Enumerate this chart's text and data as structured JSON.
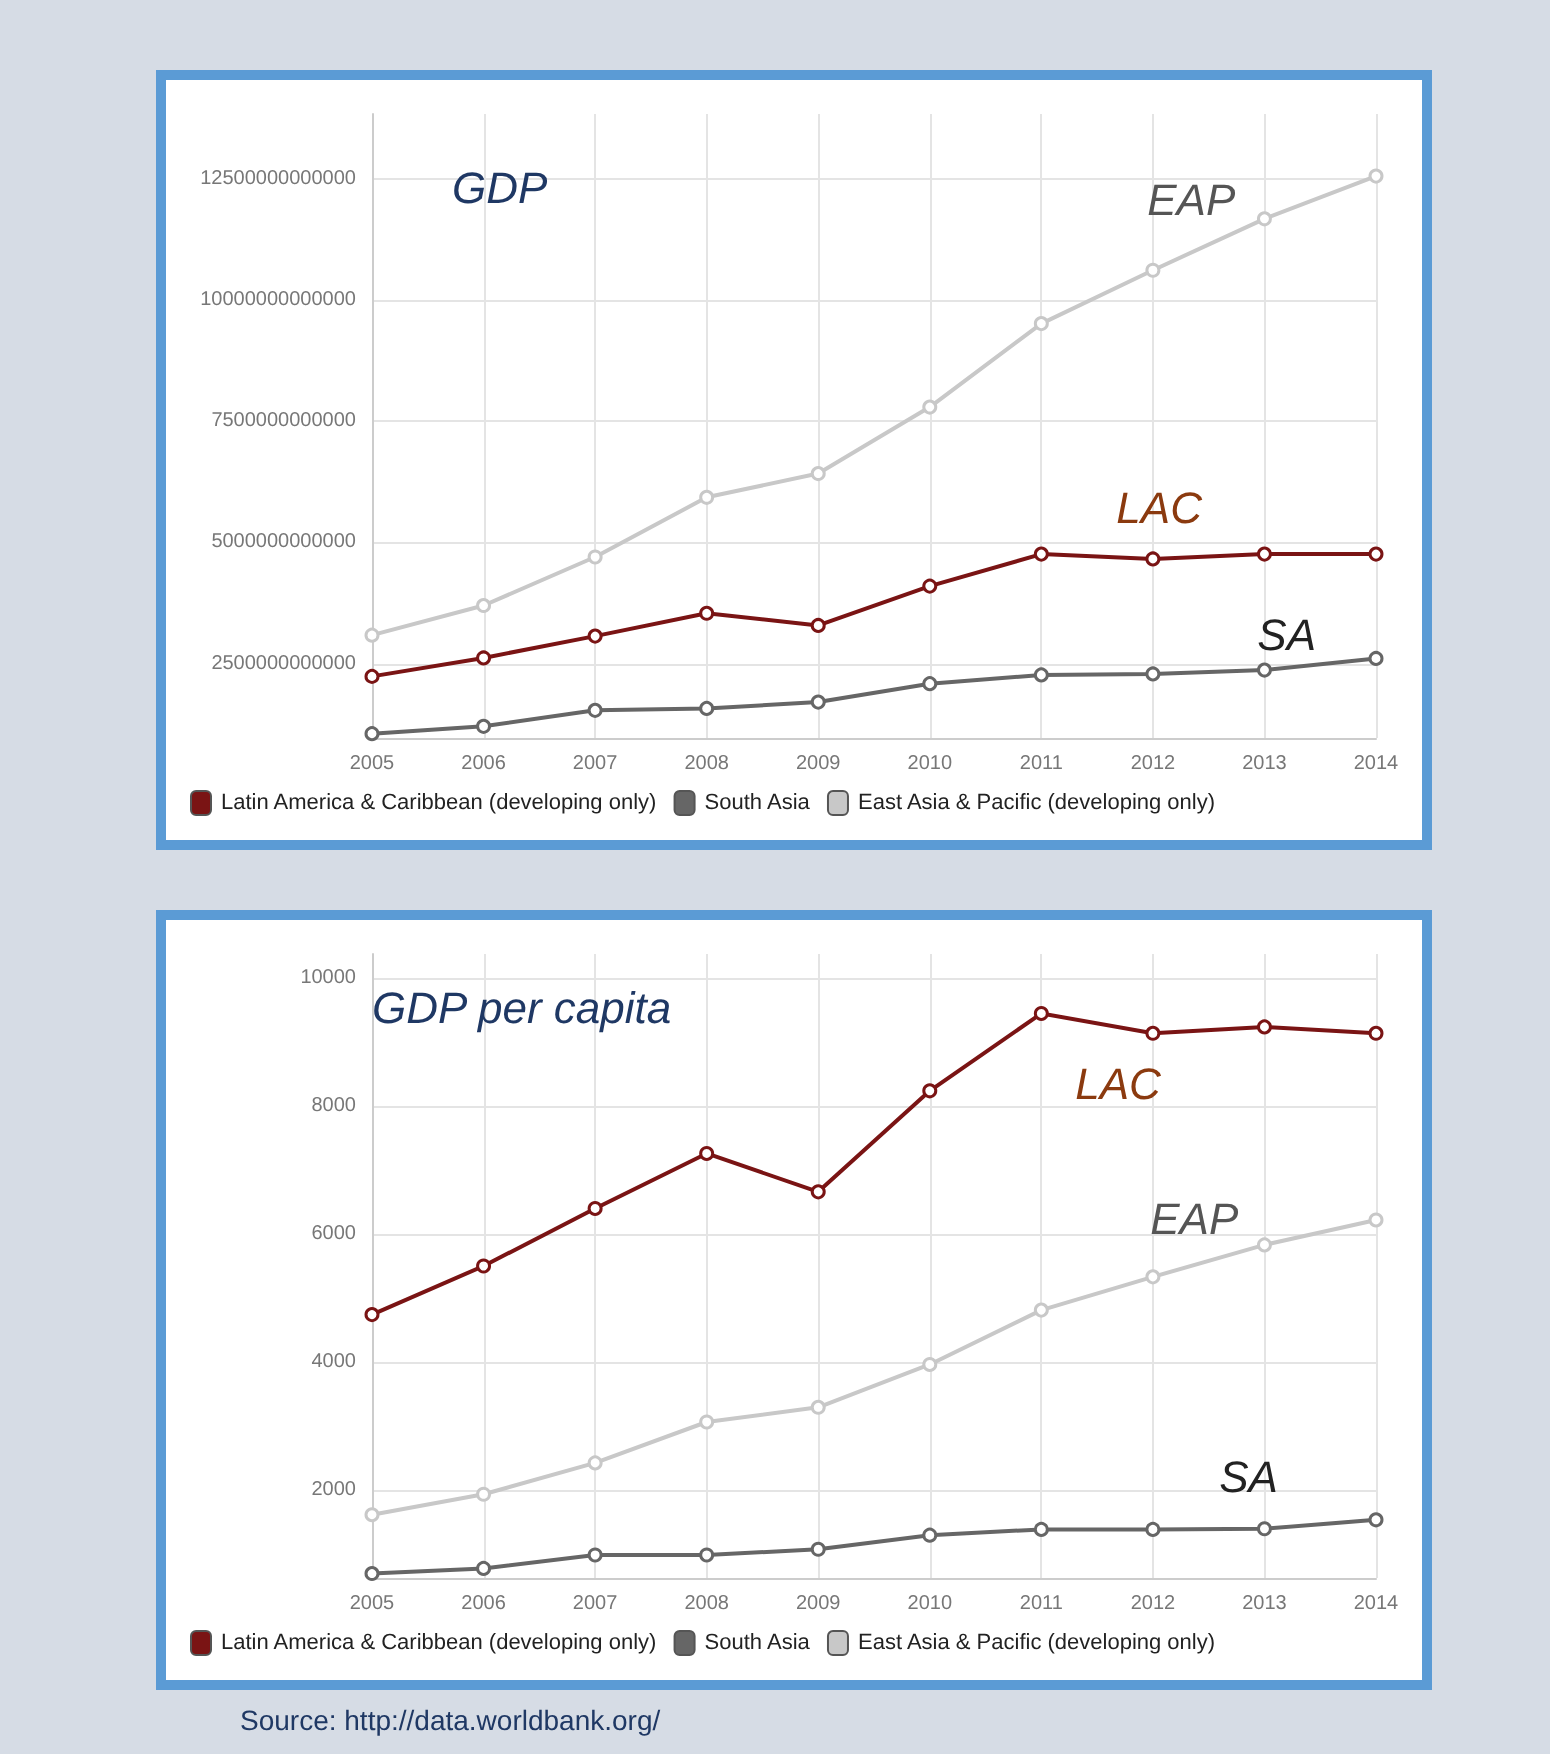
{
  "chart_data": [
    {
      "type": "line",
      "title": "GDP",
      "x": [
        2005,
        2006,
        2007,
        2008,
        2009,
        2010,
        2011,
        2012,
        2013,
        2014
      ],
      "xlim": [
        2005,
        2014
      ],
      "xticks": [
        2005,
        2006,
        2007,
        2008,
        2009,
        2010,
        2011,
        2012,
        2013,
        2014
      ],
      "ylim": [
        970000000000,
        13830000000000
      ],
      "yticks": [
        2500000000000,
        5000000000000,
        7500000000000,
        10000000000000,
        12500000000000
      ],
      "grid": true,
      "legend": "bottom",
      "marker": "circle",
      "line_style": "solid",
      "series": [
        {
          "name": "Latin America & Caribbean (developing only)",
          "color": "#7a1414",
          "values": [
            2240000000000,
            2620000000000,
            3070000000000,
            3540000000000,
            3290000000000,
            4100000000000,
            4760000000000,
            4660000000000,
            4760000000000,
            4760000000000
          ]
        },
        {
          "name": "South Asia",
          "color": "#666666",
          "values": [
            1060000000000,
            1210000000000,
            1540000000000,
            1580000000000,
            1710000000000,
            2090000000000,
            2270000000000,
            2290000000000,
            2370000000000,
            2610000000000
          ]
        },
        {
          "name": "East Asia & Pacific (developing only)",
          "color": "#c8c8c8",
          "values": [
            3090000000000,
            3700000000000,
            4700000000000,
            5930000000000,
            6420000000000,
            7790000000000,
            9510000000000,
            10610000000000,
            11670000000000,
            12550000000000
          ]
        }
      ],
      "annotations": [
        "EAP",
        "LAC",
        "SA"
      ]
    },
    {
      "type": "line",
      "title": "GDP per capita",
      "x": [
        2005,
        2006,
        2007,
        2008,
        2009,
        2010,
        2011,
        2012,
        2013,
        2014
      ],
      "xlim": [
        2005,
        2014
      ],
      "xticks": [
        2005,
        2006,
        2007,
        2008,
        2009,
        2010,
        2011,
        2012,
        2013,
        2014
      ],
      "ylim": [
        620,
        10380
      ],
      "yticks": [
        2000,
        4000,
        6000,
        8000,
        10000
      ],
      "grid": true,
      "legend": "bottom",
      "marker": "circle",
      "line_style": "solid",
      "series": [
        {
          "name": "Latin America & Caribbean (developing only)",
          "color": "#7a1414",
          "values": [
            4740,
            5500,
            6400,
            7260,
            6660,
            8240,
            9450,
            9140,
            9240,
            9140
          ]
        },
        {
          "name": "South Asia",
          "color": "#666666",
          "values": [
            690,
            770,
            980,
            980,
            1070,
            1290,
            1380,
            1380,
            1390,
            1530
          ]
        },
        {
          "name": "East Asia & Pacific (developing only)",
          "color": "#c8c8c8",
          "values": [
            1610,
            1930,
            2420,
            3060,
            3290,
            3960,
            4810,
            5330,
            5830,
            6220
          ]
        }
      ],
      "annotations": [
        "LAC",
        "EAP",
        "SA",
        "Source: http://data.worldbank.org/"
      ]
    }
  ]
}
